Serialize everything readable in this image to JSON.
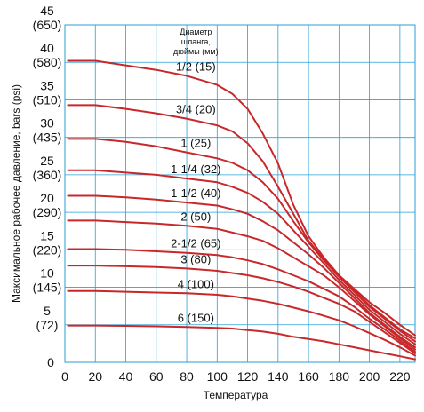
{
  "chart_data": {
    "type": "line",
    "xlabel": "Температура",
    "ylabel": "Максимальное рабочее давление, bars (psi)",
    "legend_title": [
      "Диаметр",
      "шланга,",
      "дюймы (мм)"
    ],
    "xlim": [
      0,
      230
    ],
    "ylim": [
      0,
      45
    ],
    "x_ticks": [
      0,
      20,
      40,
      60,
      80,
      100,
      120,
      140,
      160,
      180,
      200,
      220
    ],
    "y_ticks": [
      {
        "value": 45,
        "bar": "45",
        "psi": "(650)"
      },
      {
        "value": 40,
        "bar": "40",
        "psi": "(580)"
      },
      {
        "value": 35,
        "bar": "35",
        "psi": "(510)"
      },
      {
        "value": 30,
        "bar": "30",
        "psi": "(435)"
      },
      {
        "value": 25,
        "bar": "25",
        "psi": "(360)"
      },
      {
        "value": 20,
        "bar": "20",
        "psi": "(290)"
      },
      {
        "value": 15,
        "bar": "15",
        "psi": "(220)"
      },
      {
        "value": 10,
        "bar": "10",
        "psi": "(145)"
      },
      {
        "value": 5,
        "bar": "5",
        "psi": "(72)"
      },
      {
        "value": 0,
        "bar": "0",
        "psi": ""
      }
    ],
    "grid": true,
    "line_color": "#c8282a",
    "grid_color": "#2a9fd6",
    "series": [
      {
        "name": "1/2 (15)",
        "points": [
          [
            2,
            40.2
          ],
          [
            20,
            40.2
          ],
          [
            40,
            39.6
          ],
          [
            60,
            39
          ],
          [
            80,
            38.2
          ],
          [
            100,
            37
          ],
          [
            110,
            35.8
          ],
          [
            120,
            33.8
          ],
          [
            130,
            30.5
          ],
          [
            140,
            26.5
          ],
          [
            150,
            21
          ],
          [
            160,
            16.8
          ],
          [
            170,
            14
          ],
          [
            180,
            11.6
          ],
          [
            190,
            9.8
          ],
          [
            200,
            8
          ],
          [
            210,
            6.6
          ],
          [
            220,
            5
          ],
          [
            230,
            3.6
          ]
        ]
      },
      {
        "name": "3/4 (20)",
        "points": [
          [
            2,
            34.3
          ],
          [
            20,
            34.3
          ],
          [
            40,
            33.8
          ],
          [
            60,
            33.2
          ],
          [
            80,
            32.5
          ],
          [
            100,
            31.6
          ],
          [
            110,
            30.8
          ],
          [
            120,
            29.2
          ],
          [
            130,
            26.8
          ],
          [
            140,
            23.4
          ],
          [
            150,
            19.8
          ],
          [
            160,
            16.2
          ],
          [
            170,
            13.8
          ],
          [
            180,
            11.6
          ],
          [
            190,
            9.6
          ],
          [
            200,
            7.6
          ],
          [
            210,
            6
          ],
          [
            220,
            4.4
          ],
          [
            230,
            3.2
          ]
        ]
      },
      {
        "name": "1 (25)",
        "points": [
          [
            2,
            29.8
          ],
          [
            20,
            29.8
          ],
          [
            40,
            29.4
          ],
          [
            60,
            28.8
          ],
          [
            80,
            28
          ],
          [
            100,
            27.2
          ],
          [
            110,
            26.6
          ],
          [
            120,
            25.6
          ],
          [
            130,
            24
          ],
          [
            140,
            21.8
          ],
          [
            150,
            18.8
          ],
          [
            160,
            16
          ],
          [
            170,
            13.6
          ],
          [
            180,
            11.4
          ],
          [
            190,
            9.4
          ],
          [
            200,
            7.4
          ],
          [
            210,
            5.8
          ],
          [
            220,
            4.2
          ],
          [
            230,
            2.8
          ]
        ]
      },
      {
        "name": "1-1/4 (32)",
        "points": [
          [
            2,
            25.6
          ],
          [
            20,
            25.6
          ],
          [
            40,
            25.3
          ],
          [
            60,
            25
          ],
          [
            80,
            24.5
          ],
          [
            100,
            24
          ],
          [
            110,
            23.4
          ],
          [
            120,
            22.6
          ],
          [
            130,
            21.4
          ],
          [
            140,
            19.8
          ],
          [
            150,
            17.6
          ],
          [
            160,
            15.4
          ],
          [
            170,
            13.2
          ],
          [
            180,
            11
          ],
          [
            190,
            9
          ],
          [
            200,
            7
          ],
          [
            210,
            5.4
          ],
          [
            220,
            3.8
          ],
          [
            230,
            2.4
          ]
        ]
      },
      {
        "name": "1-1/2 (40)",
        "points": [
          [
            2,
            22.2
          ],
          [
            20,
            22.2
          ],
          [
            40,
            22
          ],
          [
            60,
            21.7
          ],
          [
            80,
            21.3
          ],
          [
            100,
            20.9
          ],
          [
            110,
            20.4
          ],
          [
            120,
            19.8
          ],
          [
            130,
            18.8
          ],
          [
            140,
            17.6
          ],
          [
            150,
            16
          ],
          [
            160,
            14.4
          ],
          [
            170,
            12.6
          ],
          [
            180,
            10.6
          ],
          [
            190,
            8.6
          ],
          [
            200,
            6.6
          ],
          [
            210,
            5
          ],
          [
            220,
            3.4
          ],
          [
            230,
            2
          ]
        ]
      },
      {
        "name": "2 (50)",
        "points": [
          [
            2,
            18.9
          ],
          [
            20,
            18.9
          ],
          [
            40,
            18.7
          ],
          [
            60,
            18.5
          ],
          [
            80,
            18.2
          ],
          [
            100,
            17.8
          ],
          [
            110,
            17.3
          ],
          [
            120,
            16.8
          ],
          [
            130,
            16.2
          ],
          [
            140,
            15.2
          ],
          [
            150,
            14
          ],
          [
            160,
            12.8
          ],
          [
            170,
            11.6
          ],
          [
            180,
            10
          ],
          [
            190,
            8.2
          ],
          [
            200,
            6.4
          ],
          [
            210,
            4.8
          ],
          [
            220,
            3.2
          ],
          [
            230,
            1.7
          ]
        ]
      },
      {
        "name": "2-1/2 (65)",
        "points": [
          [
            2,
            15.1
          ],
          [
            20,
            15.1
          ],
          [
            40,
            15
          ],
          [
            60,
            14.8
          ],
          [
            80,
            14.6
          ],
          [
            100,
            14.3
          ],
          [
            110,
            14
          ],
          [
            120,
            13.6
          ],
          [
            130,
            13.1
          ],
          [
            140,
            12.4
          ],
          [
            150,
            11.6
          ],
          [
            160,
            10.8
          ],
          [
            170,
            9.8
          ],
          [
            180,
            8.8
          ],
          [
            190,
            7.4
          ],
          [
            200,
            5.8
          ],
          [
            210,
            4.4
          ],
          [
            220,
            2.9
          ],
          [
            230,
            1.4
          ]
        ]
      },
      {
        "name": "3 (80)",
        "points": [
          [
            2,
            12.9
          ],
          [
            20,
            12.9
          ],
          [
            40,
            12.8
          ],
          [
            60,
            12.7
          ],
          [
            80,
            12.5
          ],
          [
            100,
            12.2
          ],
          [
            110,
            11.9
          ],
          [
            120,
            11.6
          ],
          [
            130,
            11.2
          ],
          [
            140,
            10.7
          ],
          [
            150,
            10.1
          ],
          [
            160,
            9.4
          ],
          [
            170,
            8.6
          ],
          [
            180,
            7.8
          ],
          [
            190,
            6.8
          ],
          [
            200,
            5.4
          ],
          [
            210,
            4
          ],
          [
            220,
            2.6
          ],
          [
            230,
            1.2
          ]
        ]
      },
      {
        "name": "4 (100)",
        "points": [
          [
            2,
            9.5
          ],
          [
            20,
            9.5
          ],
          [
            40,
            9.4
          ],
          [
            60,
            9.3
          ],
          [
            80,
            9.2
          ],
          [
            100,
            9
          ],
          [
            110,
            8.8
          ],
          [
            120,
            8.5
          ],
          [
            130,
            8.2
          ],
          [
            140,
            7.8
          ],
          [
            150,
            7.3
          ],
          [
            160,
            6.8
          ],
          [
            170,
            6.2
          ],
          [
            180,
            5.6
          ],
          [
            190,
            4.8
          ],
          [
            200,
            3.9
          ],
          [
            210,
            3
          ],
          [
            220,
            2
          ],
          [
            230,
            0.9
          ]
        ]
      },
      {
        "name": "6 (150)",
        "points": [
          [
            2,
            4.9
          ],
          [
            20,
            4.9
          ],
          [
            40,
            4.85
          ],
          [
            60,
            4.8
          ],
          [
            80,
            4.7
          ],
          [
            100,
            4.6
          ],
          [
            110,
            4.5
          ],
          [
            120,
            4.3
          ],
          [
            130,
            4.1
          ],
          [
            140,
            3.8
          ],
          [
            150,
            3.4
          ],
          [
            160,
            3.1
          ],
          [
            170,
            2.8
          ],
          [
            180,
            2.4
          ],
          [
            190,
            2
          ],
          [
            200,
            1.6
          ],
          [
            210,
            1.2
          ],
          [
            220,
            0.8
          ],
          [
            230,
            0.4
          ]
        ]
      }
    ]
  }
}
